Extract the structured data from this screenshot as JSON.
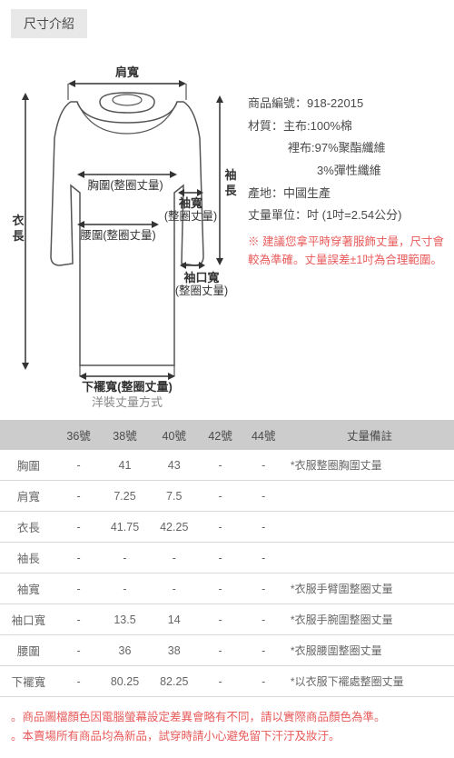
{
  "header_title": "尺寸介紹",
  "product_info": {
    "code_label": "商品編號：",
    "code_value": "918-22015",
    "material_label": "材質：",
    "material_main": "主布:100%棉",
    "material_lining1": "裡布:97%聚酯纖維",
    "material_lining2": "3%彈性纖維",
    "origin_label": "產地：",
    "origin_value": "中國生產",
    "unit_label": "丈量單位：",
    "unit_value": "吋 (1吋=2.54公分)",
    "warning_text": "※ 建議您拿平時穿著服飾丈量，尺寸會較為準確。丈量誤差±1吋為合理範圍。"
  },
  "diagram": {
    "shoulder": "肩寬",
    "sleeve_len": "袖長",
    "body_len": "衣長",
    "chest": "胸圍(整圈丈量)",
    "sleeve_width": "袖寬(整圈丈量)",
    "waist": "腰圍(整圈丈量)",
    "cuff": "袖口寬(整圈丈量)",
    "hem": "下襬寬(整圈丈量)",
    "caption": "洋裝丈量方式"
  },
  "size_table": {
    "headers": [
      "",
      "36號",
      "38號",
      "40號",
      "42號",
      "44號",
      "丈量備註"
    ],
    "rows": [
      {
        "label": "胸圍",
        "v": [
          "-",
          "41",
          "43",
          "-",
          "-"
        ],
        "note": "*衣服整圈胸圍丈量"
      },
      {
        "label": "肩寬",
        "v": [
          "-",
          "7.25",
          "7.5",
          "-",
          "-"
        ],
        "note": ""
      },
      {
        "label": "衣長",
        "v": [
          "-",
          "41.75",
          "42.25",
          "-",
          "-"
        ],
        "note": ""
      },
      {
        "label": "袖長",
        "v": [
          "-",
          "-",
          "-",
          "-",
          "-"
        ],
        "note": ""
      },
      {
        "label": "袖寬",
        "v": [
          "-",
          "-",
          "-",
          "-",
          "-"
        ],
        "note": "*衣服手臂圍整圈丈量"
      },
      {
        "label": "袖口寬",
        "v": [
          "-",
          "13.5",
          "14",
          "-",
          "-"
        ],
        "note": "*衣服手腕圍整圈丈量"
      },
      {
        "label": "腰圍",
        "v": [
          "-",
          "36",
          "38",
          "-",
          "-"
        ],
        "note": "*衣服腰圍整圈丈量"
      },
      {
        "label": "下襬寬",
        "v": [
          "-",
          "80.25",
          "82.25",
          "-",
          "-"
        ],
        "note": "*以衣服下襬處整圈丈量"
      }
    ]
  },
  "footer": {
    "note1": "。商品圖檔顏色因電腦螢幕設定差異會略有不同，請以實際商品顏色為準。",
    "note2": "。本賣場所有商品均為新品，試穿時請小心避免留下汗汙及妝汙。"
  }
}
